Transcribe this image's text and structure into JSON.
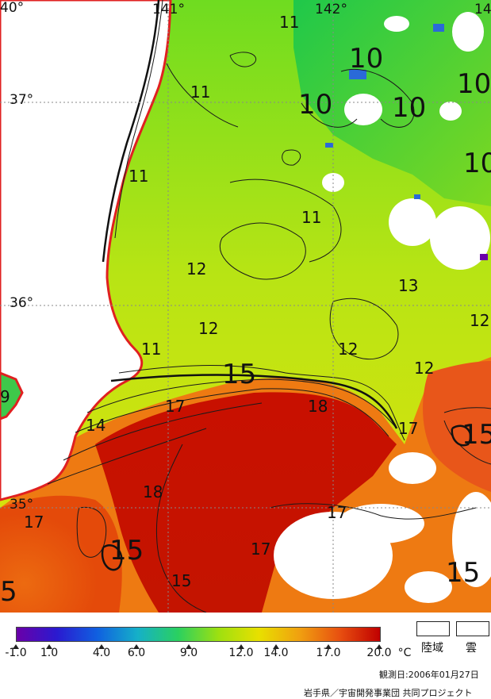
{
  "map": {
    "longitude_labels": [
      "40°",
      "141°",
      "142°",
      "14"
    ],
    "latitude_labels": [
      "37°",
      "36°",
      "35°"
    ],
    "isotherm_labels": [
      "11",
      "10",
      "10",
      "10",
      "10",
      "11",
      "11",
      "10",
      "12",
      "11",
      "13",
      "12",
      "12",
      "12",
      "12",
      "11",
      "15",
      "17",
      "18",
      "14",
      "17",
      "15",
      "18",
      "9",
      "17",
      "15",
      "17",
      "17",
      "15",
      "15",
      "5",
      "17"
    ]
  },
  "colorbar": {
    "unit": "°C",
    "tick_labels": [
      "-1.0",
      "1.0",
      "4.0",
      "6.0",
      "9.0",
      "12.0",
      "14.0",
      "17.0",
      "20.0"
    ],
    "tick_values": [
      -1.0,
      1.0,
      4.0,
      6.0,
      9.0,
      12.0,
      14.0,
      17.0,
      20.0
    ],
    "colors": [
      "#6a00a8",
      "#2a1ad0",
      "#1060e0",
      "#15b0c8",
      "#2ad060",
      "#9ee010",
      "#e8e000",
      "#f0a010",
      "#e85010",
      "#c00000"
    ]
  },
  "legend_boxes": [
    {
      "label": "陸域"
    },
    {
      "label": "雲"
    }
  ],
  "footer": {
    "date": "観測日:2006年01月27日",
    "credit": "岩手県／宇宙開発事業団 共同プロジェクト"
  }
}
